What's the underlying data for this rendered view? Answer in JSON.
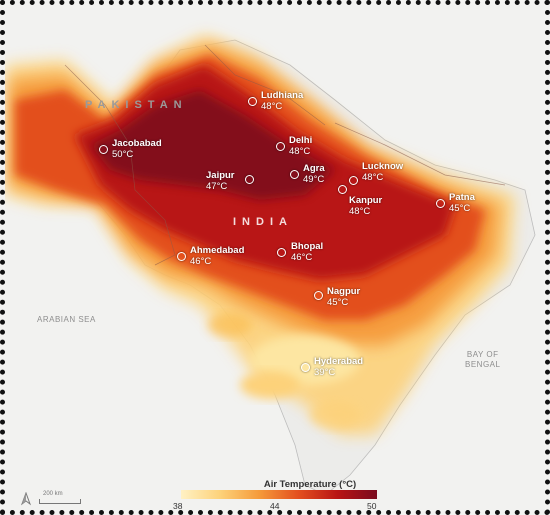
{
  "map": {
    "countries": {
      "pakistan": "PAKISTAN",
      "india": "INDIA"
    },
    "seas": {
      "arabian": "ARABIAN SEA",
      "bay_line1": "BAY OF",
      "bay_line2": "BENGAL"
    },
    "cities": [
      {
        "name": "Ludhiana",
        "temp": "48°C"
      },
      {
        "name": "Jacobabad",
        "temp": "50°C"
      },
      {
        "name": "Delhi",
        "temp": "48°C"
      },
      {
        "name": "Jaipur",
        "temp": "47°C"
      },
      {
        "name": "Agra",
        "temp": "49°C"
      },
      {
        "name": "Lucknow",
        "temp": "48°C"
      },
      {
        "name": "Kanpur",
        "temp": "48°C"
      },
      {
        "name": "Patna",
        "temp": "45°C"
      },
      {
        "name": "Ahmedabad",
        "temp": "46°C"
      },
      {
        "name": "Bhopal",
        "temp": "46°C"
      },
      {
        "name": "Nagpur",
        "temp": "45°C"
      },
      {
        "name": "Hyderabad",
        "temp": "39°C"
      }
    ]
  },
  "legend": {
    "title": "Air Temperature (°C)",
    "ticks": [
      "38",
      "44",
      "50"
    ],
    "colors": [
      "#fff1c4",
      "#fdd27a",
      "#f59a3a",
      "#e34f1f",
      "#b81414",
      "#7a0b1f"
    ]
  },
  "scale": {
    "label": "200 km"
  },
  "icons": {
    "north_arrow": "north-arrow-icon"
  }
}
